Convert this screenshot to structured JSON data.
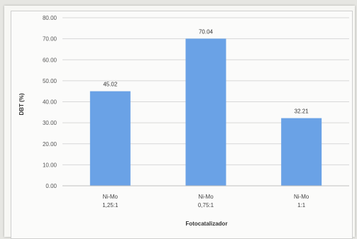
{
  "chart_data": {
    "type": "bar",
    "categories": [
      [
        "Ni-Mo",
        "1,25:1"
      ],
      [
        "Ni-Mo",
        "0,75:1"
      ],
      [
        "Ni-Mo",
        "1:1"
      ]
    ],
    "values": [
      45.02,
      70.04,
      32.21
    ],
    "value_labels": [
      "45.02",
      "70.04",
      "32.21"
    ],
    "xlabel": "Fotocatalizador",
    "ylabel": "DBT (%)",
    "ylim": [
      0,
      80
    ],
    "yticks": [
      "0.00",
      "10.00",
      "20.00",
      "30.00",
      "40.00",
      "50.00",
      "60.00",
      "70.00",
      "80.00"
    ],
    "grid": true,
    "bar_color": "#6aa2e6",
    "grid_color": "#d8d8d8"
  }
}
